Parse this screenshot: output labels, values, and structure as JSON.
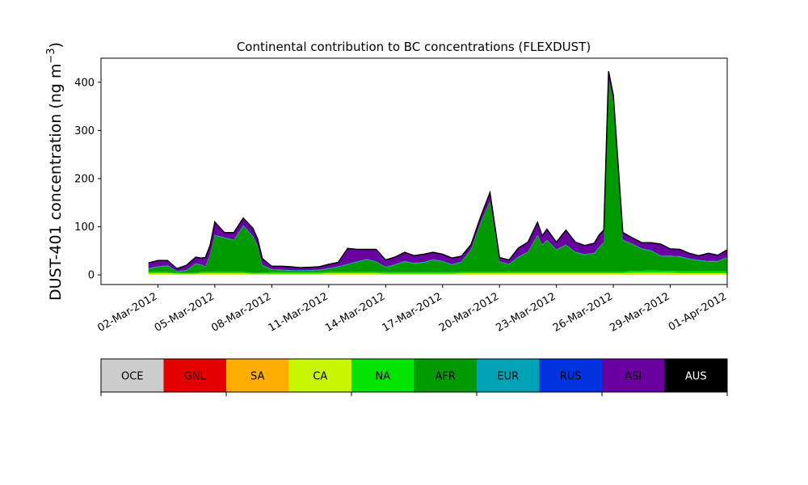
{
  "chart_data": {
    "type": "area",
    "title": "Continental contribution to BC concentrations (FLEXDUST)",
    "ylabel_main": "DUST-401 concentration (ng m",
    "ylabel_unit_exp": "−3",
    "ylabel_close": ")",
    "xlabel": "",
    "ylim": [
      -20,
      450
    ],
    "yticks": [
      0,
      100,
      200,
      300,
      400
    ],
    "xaxis": {
      "start": "2012-02-28",
      "end": "2012-04-01"
    },
    "xticks": [
      "02-Mar-2012",
      "05-Mar-2012",
      "08-Mar-2012",
      "11-Mar-2012",
      "14-Mar-2012",
      "17-Mar-2012",
      "20-Mar-2012",
      "23-Mar-2012",
      "26-Mar-2012",
      "29-Mar-2012",
      "01-Apr-2012"
    ],
    "xtick_dates": [
      "2012-03-02",
      "2012-03-05",
      "2012-03-08",
      "2012-03-11",
      "2012-03-14",
      "2012-03-17",
      "2012-03-20",
      "2012-03-23",
      "2012-03-26",
      "2012-03-29",
      "2012-04-01"
    ],
    "grid": false,
    "legend_placement": "bottom",
    "x": [
      "2012-03-01T12:00",
      "2012-03-02T00:00",
      "2012-03-02T12:00",
      "2012-03-03T00:00",
      "2012-03-03T12:00",
      "2012-03-04T00:00",
      "2012-03-04T06:00",
      "2012-03-04T12:00",
      "2012-03-04T18:00",
      "2012-03-05T00:00",
      "2012-03-05T12:00",
      "2012-03-06T00:00",
      "2012-03-06T12:00",
      "2012-03-07T00:00",
      "2012-03-07T06:00",
      "2012-03-07T12:00",
      "2012-03-08T00:00",
      "2012-03-08T12:00",
      "2012-03-09T00:00",
      "2012-03-09T12:00",
      "2012-03-10T00:00",
      "2012-03-10T12:00",
      "2012-03-11T00:00",
      "2012-03-11T12:00",
      "2012-03-12T00:00",
      "2012-03-12T12:00",
      "2012-03-13T00:00",
      "2012-03-13T12:00",
      "2012-03-14T00:00",
      "2012-03-14T12:00",
      "2012-03-15T00:00",
      "2012-03-15T12:00",
      "2012-03-16T00:00",
      "2012-03-16T12:00",
      "2012-03-17T00:00",
      "2012-03-17T12:00",
      "2012-03-18T00:00",
      "2012-03-18T12:00",
      "2012-03-19T00:00",
      "2012-03-19T12:00",
      "2012-03-20T00:00",
      "2012-03-20T12:00",
      "2012-03-21T00:00",
      "2012-03-21T12:00",
      "2012-03-22T00:00",
      "2012-03-22T06:00",
      "2012-03-22T12:00",
      "2012-03-23T00:00",
      "2012-03-23T12:00",
      "2012-03-24T00:00",
      "2012-03-24T12:00",
      "2012-03-25T00:00",
      "2012-03-25T06:00",
      "2012-03-25T12:00",
      "2012-03-25T18:00",
      "2012-03-26T00:00",
      "2012-03-26T12:00",
      "2012-03-27T00:00",
      "2012-03-27T12:00",
      "2012-03-28T00:00",
      "2012-03-28T12:00",
      "2012-03-29T00:00",
      "2012-03-29T12:00",
      "2012-03-30T00:00",
      "2012-03-30T12:00",
      "2012-03-31T00:00",
      "2012-03-31T12:00",
      "2012-04-01T00:00"
    ],
    "series": [
      {
        "name": "OCE",
        "color": "#cccccc",
        "values": [
          0,
          0,
          0,
          0,
          0,
          0,
          0,
          0,
          0,
          0,
          0,
          0,
          0,
          0,
          0,
          0,
          0,
          0,
          0,
          0,
          0,
          0,
          0,
          0,
          0,
          0,
          0,
          0,
          0,
          0,
          0,
          0,
          0,
          0,
          0,
          0,
          0,
          0,
          0,
          0,
          0,
          0,
          0,
          0,
          0,
          0,
          0,
          0,
          0,
          0,
          0,
          0,
          0,
          0,
          0,
          0,
          0,
          0,
          0,
          0,
          0,
          0,
          0,
          0,
          0,
          0,
          0,
          0
        ]
      },
      {
        "name": "GNL",
        "color": "#e50000",
        "values": [
          0,
          0,
          0,
          0,
          0,
          0,
          0,
          0,
          0,
          0,
          0,
          0,
          0,
          0,
          0,
          0,
          0,
          0,
          0,
          0,
          0,
          0,
          0,
          0,
          0,
          0,
          0,
          0,
          0,
          0,
          0,
          0,
          0,
          0,
          0,
          0,
          0,
          0,
          0,
          0,
          0,
          0,
          0,
          0,
          0,
          0,
          0,
          0,
          0,
          0,
          0,
          0,
          0,
          0,
          0,
          0,
          0,
          0,
          0,
          0,
          0,
          0,
          0,
          0,
          0,
          0,
          0,
          0
        ]
      },
      {
        "name": "SA",
        "color": "#ffad00",
        "values": [
          0.5,
          0.5,
          0.5,
          0.5,
          0.5,
          0.5,
          0.5,
          0.5,
          0.5,
          0.5,
          0.5,
          0.5,
          0.5,
          0.5,
          0.5,
          0.5,
          0.5,
          0.5,
          0.5,
          0.5,
          0.5,
          0.5,
          0.5,
          0.5,
          0.5,
          0.5,
          0.5,
          0.5,
          0.5,
          0.5,
          0.5,
          0.5,
          0.5,
          0.5,
          0.5,
          0.5,
          0.5,
          0.5,
          0.5,
          0.5,
          0.5,
          0.5,
          0.5,
          0.5,
          0.5,
          0.5,
          0.5,
          0.5,
          0.5,
          0.5,
          0.5,
          0.5,
          0.5,
          0.5,
          0.5,
          0.5,
          0.5,
          0.5,
          0.5,
          0.5,
          0.5,
          0.5,
          0.5,
          0.5,
          0.5,
          0.5,
          0.5,
          0.5
        ]
      },
      {
        "name": "CA",
        "color": "#c8f500",
        "values": [
          3,
          3,
          3,
          2,
          2,
          2,
          3,
          3,
          3,
          3,
          3,
          3,
          3,
          2,
          2,
          2,
          2,
          2,
          2,
          2,
          2,
          2,
          3,
          3,
          3,
          3,
          3,
          3,
          2,
          2,
          2,
          2,
          2,
          2,
          2,
          2,
          3,
          3,
          3,
          3,
          3,
          3,
          3,
          3,
          3,
          3,
          3,
          3,
          3,
          3,
          3,
          3,
          3,
          3,
          3,
          3,
          3,
          4,
          4,
          4,
          4,
          4,
          3,
          3,
          3,
          3,
          3,
          3
        ]
      },
      {
        "name": "NA",
        "color": "#00e200",
        "values": [
          3,
          3,
          3,
          2,
          2,
          2,
          3,
          3,
          3,
          3,
          3,
          3,
          3,
          2,
          2,
          2,
          3,
          3,
          3,
          3,
          3,
          3,
          3,
          3,
          3,
          3,
          3,
          3,
          3,
          3,
          3,
          3,
          3,
          3,
          3,
          3,
          3,
          3,
          3,
          3,
          3,
          3,
          3,
          3,
          3,
          3,
          3,
          3,
          3,
          3,
          3,
          3,
          3,
          3,
          3,
          3,
          3,
          4,
          4,
          5,
          4,
          4,
          4,
          4,
          4,
          4,
          4,
          4
        ]
      },
      {
        "name": "AFR",
        "color": "#009a00",
        "values": [
          6,
          10,
          12,
          2,
          4,
          18,
          14,
          10,
          35,
          75,
          70,
          65,
          95,
          75,
          55,
          15,
          5,
          4,
          3,
          3,
          3,
          4,
          6,
          10,
          15,
          20,
          25,
          20,
          10,
          15,
          22,
          18,
          20,
          25,
          22,
          15,
          20,
          45,
          100,
          145,
          20,
          15,
          30,
          40,
          75,
          55,
          65,
          45,
          55,
          40,
          35,
          38,
          50,
          60,
          400,
          350,
          65,
          55,
          45,
          40,
          30,
          30,
          30,
          25,
          22,
          20,
          20,
          28
        ]
      },
      {
        "name": "EUR",
        "color": "#00a2b6",
        "values": [
          1,
          1,
          1,
          1,
          1,
          1,
          1,
          1,
          1,
          1,
          1,
          1,
          1,
          1,
          1,
          1,
          1,
          1,
          1,
          1,
          1,
          1,
          1,
          1,
          1,
          1,
          1,
          1,
          1,
          1,
          1,
          1,
          1,
          1,
          1,
          1,
          1,
          1,
          1,
          1,
          1,
          1,
          1,
          1,
          1,
          1,
          1,
          1,
          1,
          1,
          1,
          1,
          1,
          1,
          1,
          1,
          1,
          1,
          1,
          1,
          1,
          1,
          1,
          1,
          1,
          1,
          1,
          1
        ]
      },
      {
        "name": "RUS",
        "color": "#0033e0",
        "values": [
          0.5,
          0.5,
          0.5,
          0.5,
          0.5,
          0.5,
          0.5,
          0.5,
          0.5,
          0.5,
          0.5,
          0.5,
          0.5,
          0.5,
          0.5,
          0.5,
          0.5,
          0.5,
          0.5,
          0.5,
          0.5,
          0.5,
          0.5,
          0.5,
          0.5,
          0.5,
          0.5,
          0.5,
          0.5,
          0.5,
          0.5,
          0.5,
          0.5,
          0.5,
          0.5,
          0.5,
          0.5,
          0.5,
          0.5,
          0.5,
          0.5,
          0.5,
          0.5,
          0.5,
          0.5,
          0.5,
          0.5,
          0.5,
          0.5,
          0.5,
          0.5,
          0.5,
          0.5,
          0.5,
          0.5,
          0.5,
          0.5,
          0.5,
          0.5,
          0.5,
          0.5,
          0.5,
          0.5,
          0.5,
          0.5,
          0.5,
          0.5,
          0.5
        ]
      },
      {
        "name": "ASI",
        "color": "#6a00a0",
        "values": [
          11,
          12,
          10,
          5,
          10,
          13,
          13,
          18,
          18,
          27,
          10,
          15,
          15,
          16,
          14,
          13,
          6,
          7,
          7,
          5,
          6,
          6,
          8,
          8,
          32,
          25,
          20,
          25,
          14,
          15,
          18,
          15,
          16,
          15,
          14,
          13,
          11,
          10,
          12,
          18,
          8,
          8,
          18,
          20,
          26,
          18,
          22,
          15,
          30,
          20,
          18,
          20,
          25,
          25,
          15,
          15,
          15,
          12,
          12,
          16,
          24,
          14,
          14,
          11,
          9,
          16,
          12,
          15
        ]
      },
      {
        "name": "AUS",
        "color": "#000000",
        "values": [
          0,
          0,
          0,
          0,
          0,
          0,
          0,
          0,
          0,
          0,
          0,
          0,
          0,
          0,
          0,
          0,
          0,
          0,
          0,
          0,
          0,
          0,
          0,
          0,
          0,
          0,
          0,
          0,
          0,
          0,
          0,
          0,
          0,
          0,
          0,
          0,
          0,
          0,
          0,
          0,
          0,
          0,
          0,
          0,
          0,
          0,
          0,
          0,
          0,
          0,
          0,
          0,
          0,
          0,
          0,
          0,
          0,
          0,
          0,
          0,
          0,
          0,
          0,
          0,
          0,
          0,
          0,
          0
        ]
      }
    ],
    "legend": [
      {
        "label": "OCE",
        "color": "#cccccc",
        "text_color": "#000000"
      },
      {
        "label": "GNL",
        "color": "#e50000",
        "text_color": "#000000"
      },
      {
        "label": "SA",
        "color": "#ffad00",
        "text_color": "#000000"
      },
      {
        "label": "CA",
        "color": "#c8f500",
        "text_color": "#000000"
      },
      {
        "label": "NA",
        "color": "#00e200",
        "text_color": "#000000"
      },
      {
        "label": "AFR",
        "color": "#009a00",
        "text_color": "#000000"
      },
      {
        "label": "EUR",
        "color": "#00a2b6",
        "text_color": "#000000"
      },
      {
        "label": "RUS",
        "color": "#0033e0",
        "text_color": "#000000"
      },
      {
        "label": "ASI",
        "color": "#6a00a0",
        "text_color": "#000000"
      },
      {
        "label": "AUS",
        "color": "#000000",
        "text_color": "#ffffff"
      }
    ]
  }
}
